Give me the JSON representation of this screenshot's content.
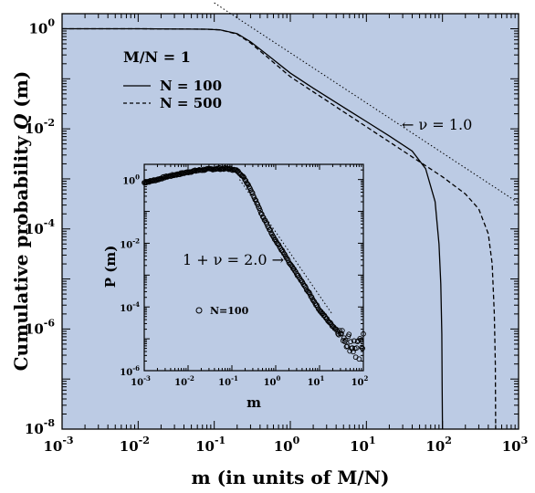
{
  "chart_data": {
    "main": {
      "type": "line",
      "xscale": "log",
      "yscale": "log",
      "xlim": [
        0.001,
        1000
      ],
      "ylim": [
        1e-08,
        2
      ],
      "xlabel": "m (in units of M/N)",
      "ylabel": "Cumulative probability Q (m)",
      "ylabel_prefix": "Cumulative probability ",
      "ylabel_var": "Q",
      "ylabel_suffix": " (m)",
      "x_ticks": [
        {
          "value": 0.001,
          "base": "10",
          "exp": "-3"
        },
        {
          "value": 0.01,
          "base": "10",
          "exp": "-2"
        },
        {
          "value": 0.1,
          "base": "10",
          "exp": "-1"
        },
        {
          "value": 1,
          "base": "10",
          "exp": "0"
        },
        {
          "value": 10,
          "base": "10",
          "exp": "1"
        },
        {
          "value": 100,
          "base": "10",
          "exp": "2"
        },
        {
          "value": 1000,
          "base": "10",
          "exp": "3"
        }
      ],
      "y_ticks": [
        {
          "value": 1,
          "base": "10",
          "exp": "0"
        },
        {
          "value": 0.01,
          "base": "10",
          "exp": "-2"
        },
        {
          "value": 0.0001,
          "base": "10",
          "exp": "-4"
        },
        {
          "value": 1e-06,
          "base": "10",
          "exp": "-6"
        },
        {
          "value": 1e-08,
          "base": "10",
          "exp": "-8"
        }
      ],
      "legend": {
        "title": "M/N = 1",
        "entries": [
          "N = 100",
          "N = 500"
        ],
        "position": "top-left"
      },
      "series": [
        {
          "name": "N = 100",
          "style": "solid",
          "x": [
            0.001,
            0.01,
            0.03,
            0.08,
            0.12,
            0.2,
            0.3,
            0.5,
            1,
            2,
            5,
            10,
            20,
            40,
            60,
            80,
            90,
            95,
            98,
            99,
            100
          ],
          "y": [
            1,
            1,
            0.99,
            0.98,
            0.95,
            0.8,
            0.55,
            0.3,
            0.13,
            0.065,
            0.027,
            0.014,
            0.0072,
            0.0036,
            0.0016,
            0.00035,
            5e-05,
            8e-06,
            8e-07,
            7e-08,
            1e-08
          ]
        },
        {
          "name": "N = 500",
          "style": "dashed",
          "x": [
            0.001,
            0.01,
            0.03,
            0.08,
            0.12,
            0.2,
            0.3,
            0.5,
            1,
            2,
            5,
            10,
            20,
            50,
            100,
            200,
            300,
            400,
            450,
            480,
            495,
            500
          ],
          "y": [
            1,
            1,
            0.99,
            0.98,
            0.95,
            0.78,
            0.52,
            0.27,
            0.11,
            0.055,
            0.022,
            0.011,
            0.0055,
            0.0022,
            0.0011,
            0.0005,
            0.00025,
            8e-05,
            2e-05,
            2e-06,
            2e-07,
            1e-08
          ]
        },
        {
          "name": "",
          "style": "dotted",
          "x": [
            0.1,
            1000
          ],
          "y": [
            3.3,
            0.00033
          ]
        }
      ],
      "annotations": [
        {
          "text": "← ν = 1.0",
          "x": 50,
          "y": 0.01
        }
      ]
    },
    "inset": {
      "type": "scatter",
      "xscale": "log",
      "yscale": "log",
      "xlim": [
        0.001,
        100
      ],
      "ylim": [
        1e-06,
        3
      ],
      "xlabel": "m",
      "ylabel": "P (m)",
      "x_ticks": [
        {
          "value": 0.001,
          "base": "10",
          "exp": "-3"
        },
        {
          "value": 0.01,
          "base": "10",
          "exp": "-2"
        },
        {
          "value": 0.1,
          "base": "10",
          "exp": "-1"
        },
        {
          "value": 1,
          "base": "10",
          "exp": "0"
        },
        {
          "value": 10,
          "base": "10",
          "exp": "1"
        },
        {
          "value": 100,
          "base": "10",
          "exp": "2"
        }
      ],
      "y_ticks": [
        {
          "value": 1,
          "base": "10",
          "exp": "0"
        },
        {
          "value": 0.01,
          "base": "10",
          "exp": "-2"
        },
        {
          "value": 0.0001,
          "base": "10",
          "exp": "-4"
        },
        {
          "value": 1e-06,
          "base": "10",
          "exp": "-6"
        }
      ],
      "legend": {
        "entries": [
          "N=100"
        ],
        "marker": "open-circle",
        "position": "bottom-left"
      },
      "series": [
        {
          "name": "N=100",
          "marker": "open-circle",
          "x": [
            0.001,
            0.002,
            0.003,
            0.005,
            0.008,
            0.012,
            0.02,
            0.03,
            0.05,
            0.08,
            0.1,
            0.13,
            0.16,
            0.2,
            0.25,
            0.3,
            0.4,
            0.5,
            0.7,
            1,
            1.5,
            2,
            3,
            4,
            6,
            8,
            10,
            15,
            20,
            30,
            40,
            50,
            60,
            70,
            80,
            90,
            100
          ],
          "y": [
            0.8,
            1.0,
            1.2,
            1.4,
            1.6,
            1.8,
            2.0,
            2.1,
            2.2,
            2.2,
            2.1,
            1.9,
            1.5,
            1.0,
            0.6,
            0.35,
            0.15,
            0.07,
            0.03,
            0.012,
            0.005,
            0.0025,
            0.0011,
            0.0006,
            0.00025,
            0.00013,
            8e-05,
            4e-05,
            2.5e-05,
            1.5e-05,
            1e-05,
            8e-06,
            6e-06,
            4e-06,
            3e-06,
            5e-06,
            3e-05
          ]
        },
        {
          "name": "",
          "style": "dotted",
          "x": [
            0.15,
            20
          ],
          "y": [
            1.0,
            5.63e-05
          ]
        }
      ],
      "annotations": [
        {
          "text": "1 + ν = 2.0 →",
          "x": 0.05,
          "y": 0.0005
        }
      ]
    }
  }
}
